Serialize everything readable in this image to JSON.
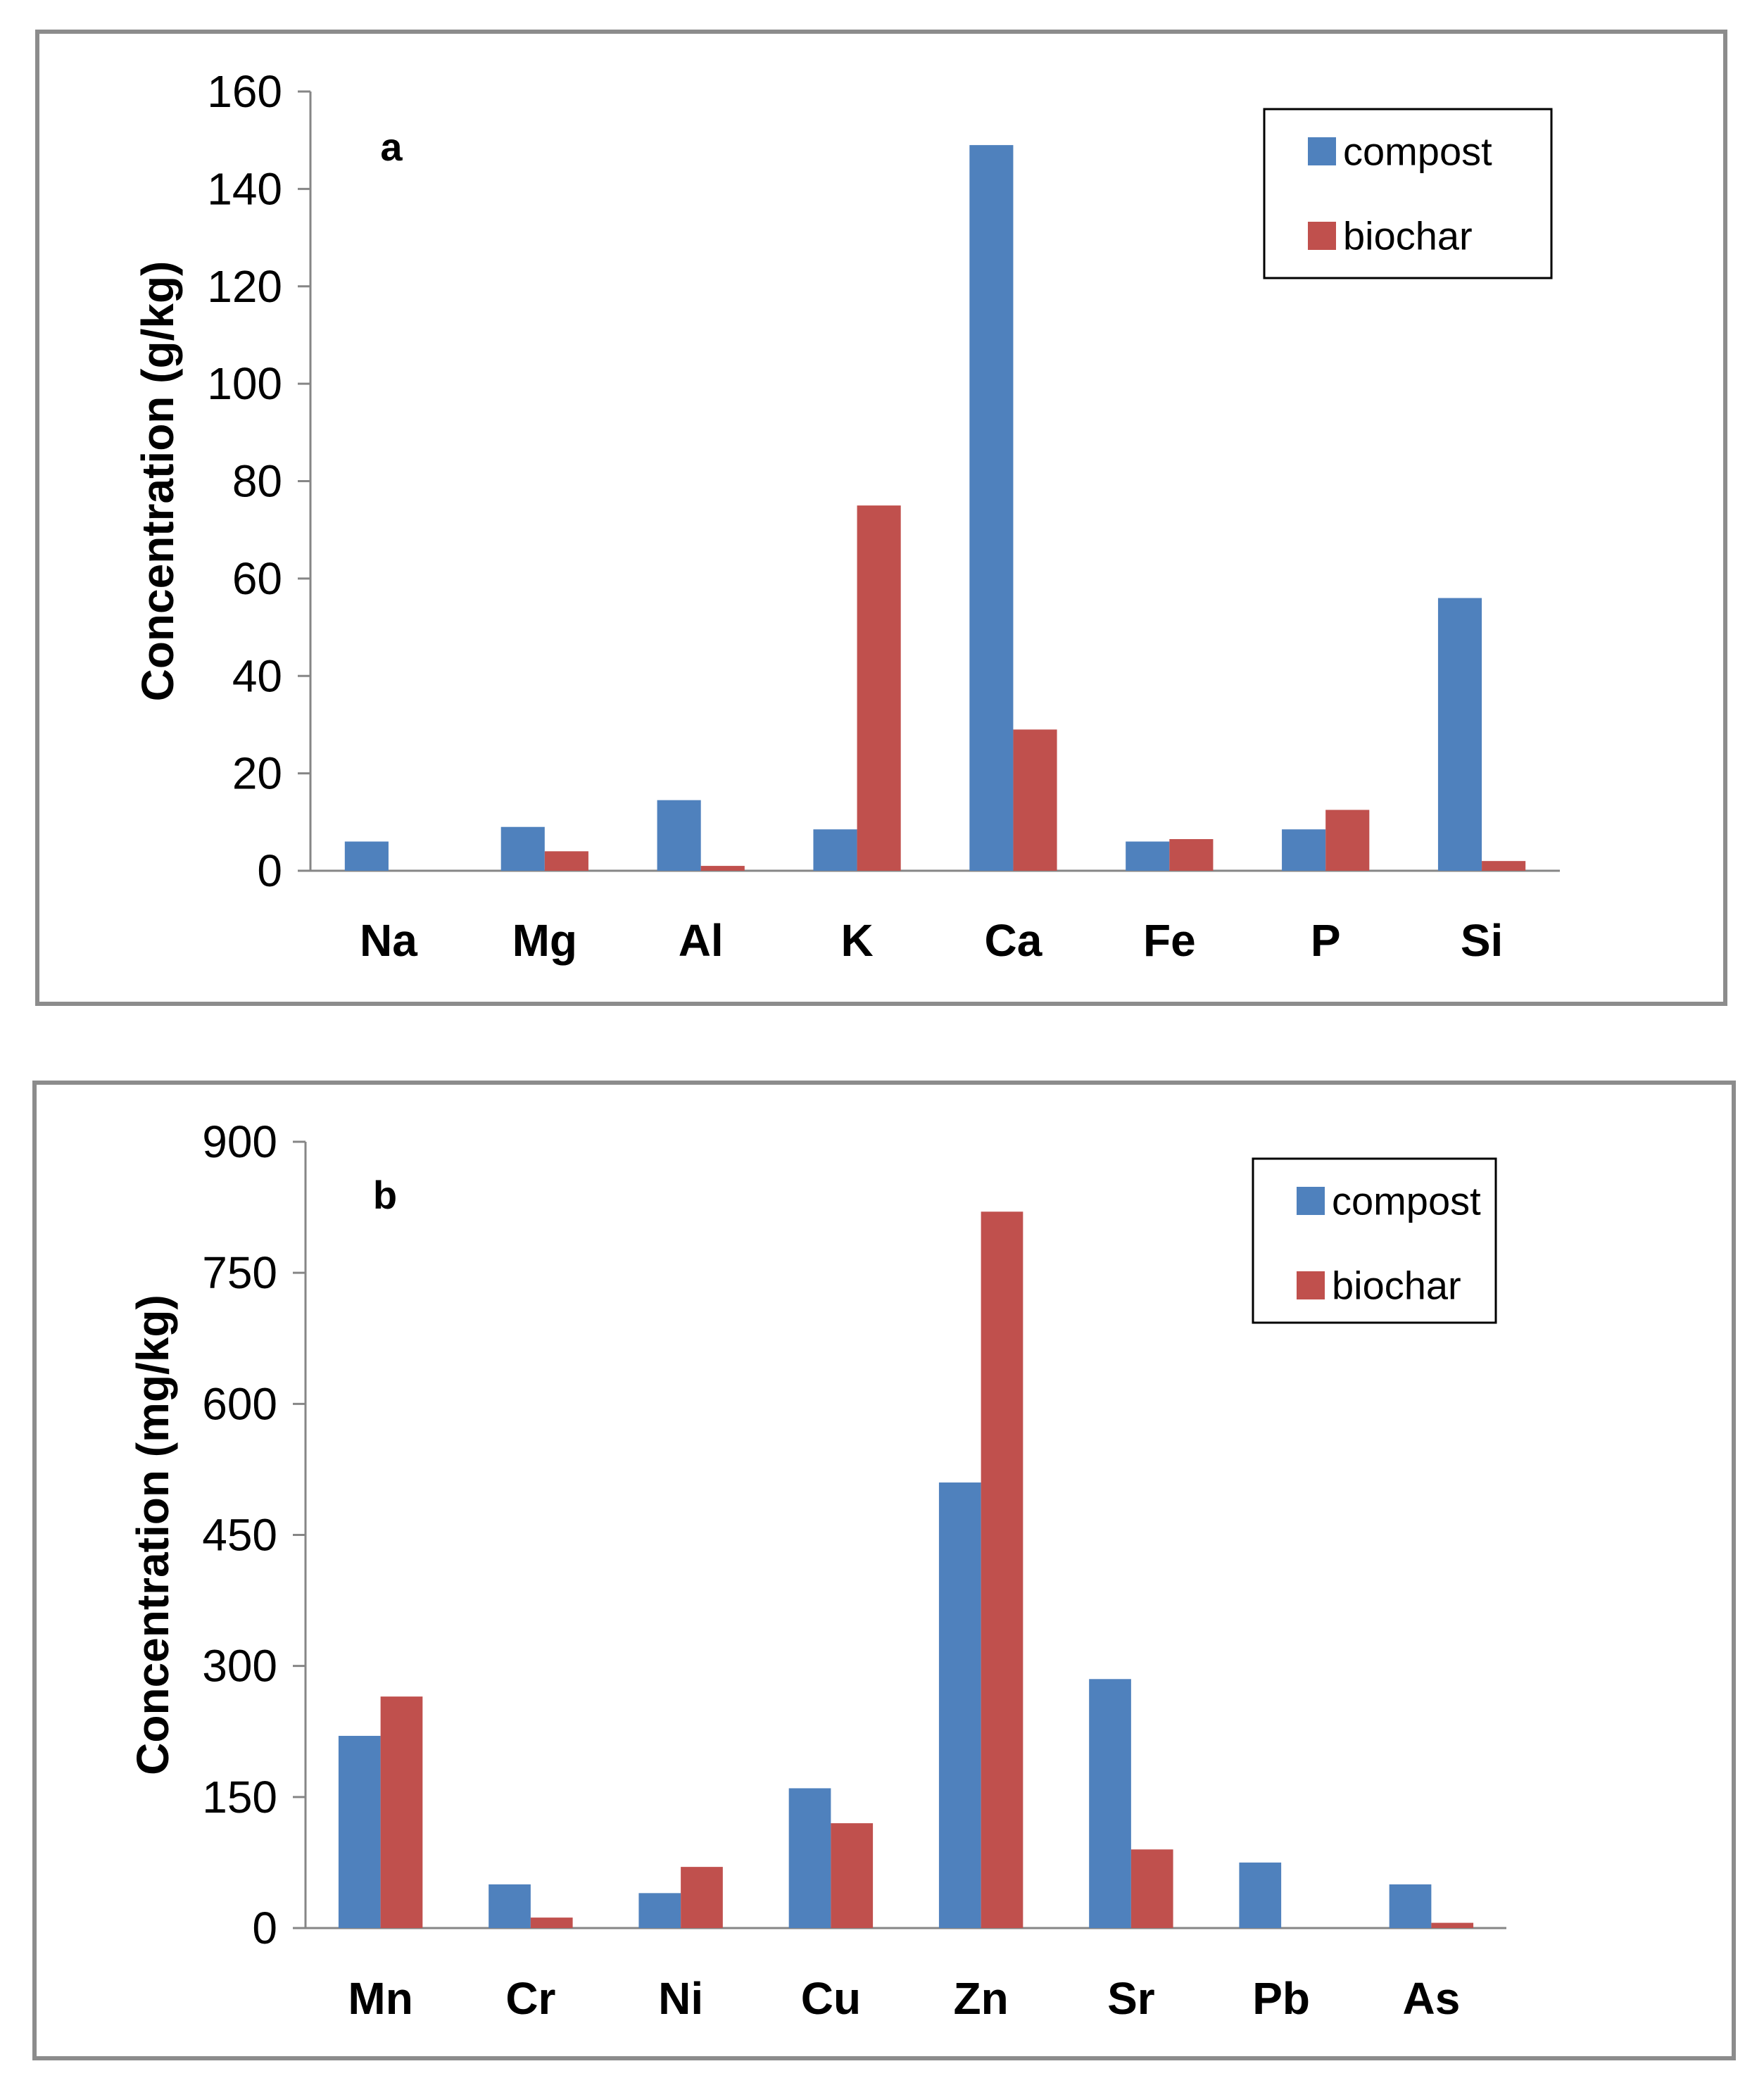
{
  "chart_data": [
    {
      "type": "bar",
      "panel_label": "a",
      "ylabel": "Concentration (g/kg)",
      "xlabel": "",
      "ylim": [
        0,
        160
      ],
      "yticks": [
        0,
        20,
        40,
        60,
        80,
        100,
        120,
        140,
        160
      ],
      "categories": [
        "Na",
        "Mg",
        "Al",
        "K",
        "Ca",
        "Fe",
        "P",
        "Si"
      ],
      "series": [
        {
          "name": "compost",
          "color": "#4f81bd",
          "values": [
            6,
            9,
            14.5,
            8.5,
            149,
            6,
            8.5,
            56
          ]
        },
        {
          "name": "biochar",
          "color": "#c0504d",
          "values": [
            0,
            4,
            1,
            75,
            29,
            6.5,
            12.5,
            2
          ]
        }
      ],
      "legend": {
        "position": "top-right",
        "entries": [
          "compost",
          "biochar"
        ]
      },
      "grid": false
    },
    {
      "type": "bar",
      "panel_label": "b",
      "ylabel": "Concentration (mg/kg)",
      "xlabel": "",
      "ylim": [
        0,
        900
      ],
      "yticks": [
        0,
        150,
        300,
        450,
        600,
        750,
        900
      ],
      "categories": [
        "Mn",
        "Cr",
        "Ni",
        "Cu",
        "Zn",
        "Sr",
        "Pb",
        "As"
      ],
      "series": [
        {
          "name": "compost",
          "color": "#4f81bd",
          "values": [
            220,
            50,
            40,
            160,
            510,
            285,
            75,
            50
          ]
        },
        {
          "name": "biochar",
          "color": "#c0504d",
          "values": [
            265,
            12,
            70,
            120,
            820,
            90,
            0,
            6
          ]
        }
      ],
      "legend": {
        "position": "top-right",
        "entries": [
          "compost",
          "biochar"
        ]
      },
      "grid": false
    }
  ]
}
